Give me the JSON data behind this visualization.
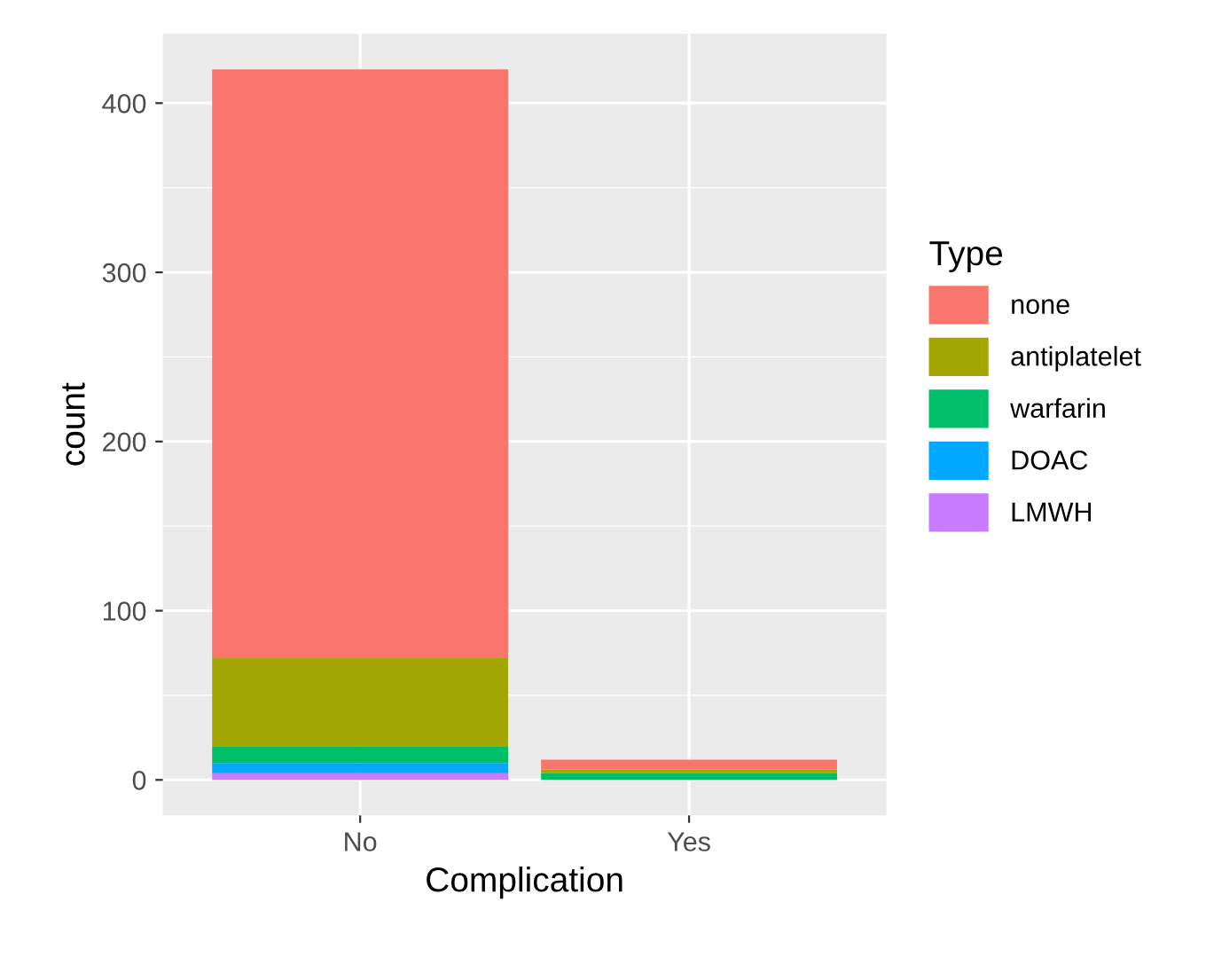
{
  "chart_data": {
    "type": "bar",
    "stacked": true,
    "xlabel": "Complication",
    "ylabel": "count",
    "legend_title": "Type",
    "legend": "right",
    "grid": true,
    "categories": [
      "No",
      "Yes"
    ],
    "series": [
      {
        "name": "LMWH",
        "color": "#c77cff",
        "values": [
          4,
          0
        ]
      },
      {
        "name": "DOAC",
        "color": "#00a9ff",
        "values": [
          6,
          0
        ]
      },
      {
        "name": "warfarin",
        "color": "#00be67",
        "values": [
          10,
          4
        ]
      },
      {
        "name": "antiplatelet",
        "color": "#a3a500",
        "values": [
          52,
          2
        ]
      },
      {
        "name": "none",
        "color": "#f8766d",
        "values": [
          348,
          6
        ]
      }
    ],
    "ylim": [
      -21,
      441
    ],
    "yticks": [
      0,
      100,
      200,
      300,
      400
    ]
  }
}
